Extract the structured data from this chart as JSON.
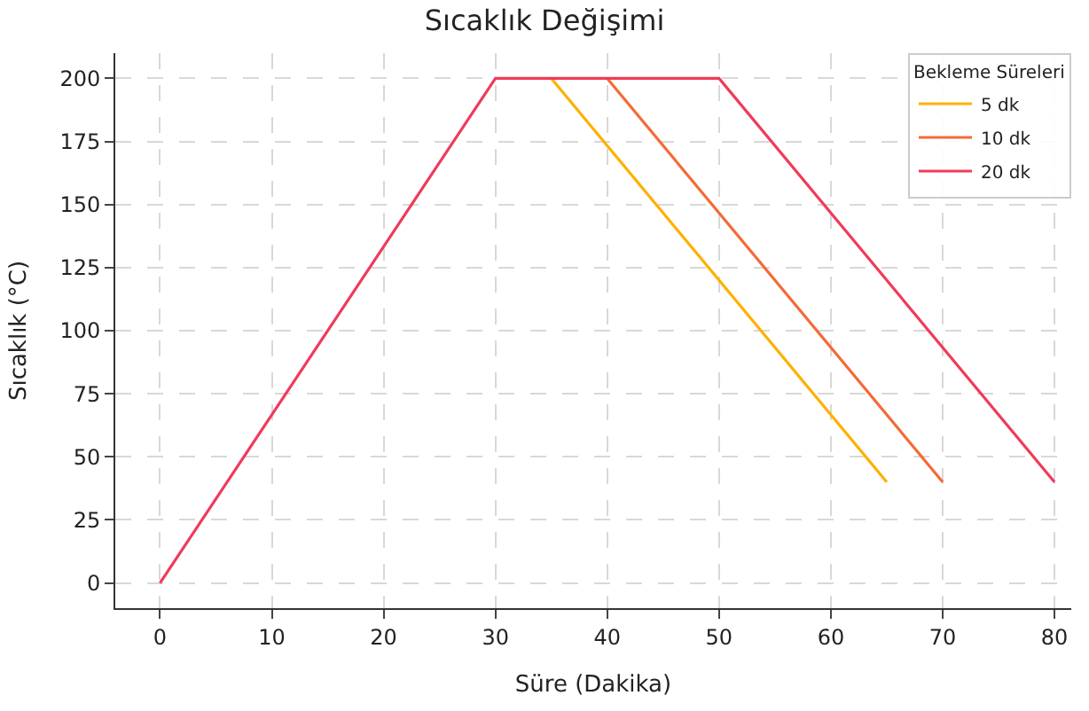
{
  "chart_data": {
    "type": "line",
    "title": "Sıcaklık Değişimi",
    "xlabel": "Süre (Dakika)",
    "ylabel": "Sıcaklık (°C)",
    "legend_title": "Bekleme Süreleri",
    "series": [
      {
        "name": "5 dk",
        "color": "#ffb000",
        "x": [
          35,
          65
        ],
        "values": [
          200,
          40
        ]
      },
      {
        "name": "10 dk",
        "color": "#f36b36",
        "x": [
          40,
          70
        ],
        "values": [
          200,
          40
        ]
      },
      {
        "name": "20 dk",
        "color": "#ef3b5a",
        "x": [
          0,
          30,
          50,
          80
        ],
        "values": [
          0,
          200,
          200,
          40
        ]
      }
    ],
    "xlim": [
      -4,
      81.5
    ],
    "ylim": [
      -10,
      210
    ],
    "xticks": [
      0,
      10,
      20,
      30,
      40,
      50,
      60,
      70,
      80
    ],
    "yticks": [
      0,
      25,
      50,
      75,
      100,
      125,
      150,
      175,
      200
    ],
    "grid": true,
    "legend": "top right",
    "marker": "none",
    "line_style": "solid"
  }
}
